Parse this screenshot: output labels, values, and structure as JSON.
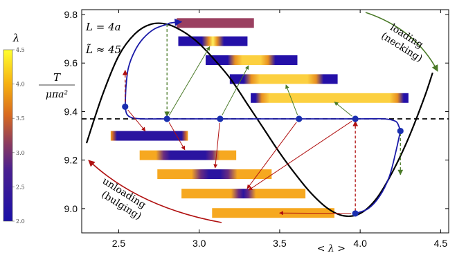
{
  "chart_data": {
    "type": "line",
    "xlabel": "< λ >",
    "ylabel_numerator": "T",
    "ylabel_denominator": "μπa²",
    "xlim": [
      2.27,
      4.55
    ],
    "ylim": [
      8.9,
      9.82
    ],
    "x_ticks": [
      {
        "value": 2.5,
        "label": "2.5"
      },
      {
        "value": 3.0,
        "label": "3.0"
      },
      {
        "value": 3.5,
        "label": "3.5"
      },
      {
        "value": 4.0,
        "label": "4.0"
      },
      {
        "value": 4.5,
        "label": "4.5"
      }
    ],
    "y_ticks": [
      {
        "value": 9.0,
        "label": "9.0"
      },
      {
        "value": 9.2,
        "label": "9.2"
      },
      {
        "value": 9.4,
        "label": "9.4"
      },
      {
        "value": 9.6,
        "label": "9.6"
      },
      {
        "value": 9.8,
        "label": "9.8"
      }
    ],
    "params_line1": "L = 4a",
    "params_line2": "L̃ ≈ 45",
    "annotation_loading": [
      "loading",
      "(necking)"
    ],
    "annotation_unloading": [
      "unloading",
      "(bulging)"
    ],
    "colorbar": {
      "label": "λ",
      "min": 2.0,
      "max": 4.5,
      "ticks": [
        "2.0",
        "2.5",
        "3.0",
        "3.5",
        "4.0",
        "4.5"
      ]
    },
    "colors": {
      "homogeneous_curve": "#000000",
      "path_curve": "#1a1aa8",
      "maxwell_line": "#000000",
      "loading_arrows": "#4a7a28",
      "unloading_arrows": "#b01010",
      "points": "#1a2fb0"
    },
    "maxwell_load": 9.37,
    "homogeneous_curve": {
      "x": [
        2.3,
        2.4,
        2.5,
        2.6,
        2.7,
        2.8,
        2.9,
        3.0,
        3.1,
        3.2,
        3.3,
        3.4,
        3.5,
        3.6,
        3.7,
        3.8,
        3.9,
        4.0,
        4.1,
        4.2,
        4.3,
        4.4,
        4.45
      ],
      "y": [
        9.27,
        9.47,
        9.63,
        9.72,
        9.76,
        9.76,
        9.73,
        9.68,
        9.61,
        9.53,
        9.43,
        9.33,
        9.23,
        9.14,
        9.06,
        9.0,
        8.97,
        8.98,
        9.04,
        9.15,
        9.29,
        9.46,
        9.56
      ]
    },
    "loading_path": {
      "x": [
        2.54,
        2.545,
        2.56,
        2.6,
        2.65,
        2.72,
        2.8,
        2.82,
        2.89
      ],
      "y": [
        9.42,
        9.5,
        9.58,
        9.65,
        9.7,
        9.74,
        9.76,
        9.765,
        9.77
      ]
    },
    "upper_branch_path": {
      "x": [
        2.54,
        2.55,
        2.58,
        2.65,
        2.8,
        3.0,
        3.5,
        4.0,
        4.15,
        4.22,
        4.24,
        4.25
      ],
      "y": [
        9.42,
        9.39,
        9.375,
        9.37,
        9.37,
        9.37,
        9.37,
        9.37,
        9.37,
        9.36,
        9.34,
        9.32
      ]
    },
    "unloading_path": {
      "x": [
        3.97,
        4.05,
        4.12,
        4.18,
        4.22,
        4.25
      ],
      "y": [
        8.98,
        9.0,
        9.05,
        9.13,
        9.23,
        9.32
      ]
    },
    "points": [
      {
        "x": 2.54,
        "y": 9.42
      },
      {
        "x": 2.8,
        "y": 9.37
      },
      {
        "x": 3.13,
        "y": 9.37
      },
      {
        "x": 3.62,
        "y": 9.37
      },
      {
        "x": 3.97,
        "y": 9.37
      },
      {
        "x": 4.25,
        "y": 9.32
      },
      {
        "x": 3.97,
        "y": 8.98
      }
    ],
    "vertical_jumps": [
      {
        "x": 2.54,
        "y_from": 9.42,
        "y_to": 9.57,
        "kind": "unloading"
      },
      {
        "x": 2.8,
        "y_from": 9.76,
        "y_to": 9.38,
        "kind": "loading"
      },
      {
        "x": 3.97,
        "y_from": 8.99,
        "y_to": 9.36,
        "kind": "unloading"
      },
      {
        "x": 4.25,
        "y_from": 9.31,
        "y_to": 9.14,
        "kind": "loading"
      }
    ],
    "shape_profiles": [
      {
        "x_start": 2.86,
        "x_end": 3.34,
        "y": 9.765,
        "profile": "uniform_mid",
        "kind": "loading"
      },
      {
        "x_start": 2.87,
        "x_end": 3.3,
        "y": 9.69,
        "profile": "neck_narrow",
        "kind": "loading"
      },
      {
        "x_start": 3.04,
        "x_end": 3.61,
        "y": 9.612,
        "profile": "neck_medium",
        "kind": "loading"
      },
      {
        "x_start": 3.19,
        "x_end": 3.86,
        "y": 9.534,
        "profile": "neck_wide",
        "kind": "loading"
      },
      {
        "x_start": 3.32,
        "x_end": 4.3,
        "y": 9.456,
        "profile": "neck_widest",
        "kind": "loading"
      },
      {
        "x_start": 2.45,
        "x_end": 2.93,
        "y": 9.3,
        "profile": "bulge_widest",
        "kind": "unloading"
      },
      {
        "x_start": 2.63,
        "x_end": 3.23,
        "y": 9.22,
        "profile": "bulge_wide",
        "kind": "unloading"
      },
      {
        "x_start": 2.74,
        "x_end": 3.45,
        "y": 9.142,
        "profile": "bulge_medium",
        "kind": "unloading"
      },
      {
        "x_start": 2.89,
        "x_end": 3.66,
        "y": 9.062,
        "profile": "bulge_narrow",
        "kind": "unloading"
      },
      {
        "x_start": 3.08,
        "x_end": 3.84,
        "y": 8.982,
        "profile": "uniform_high",
        "kind": "unloading"
      }
    ]
  }
}
